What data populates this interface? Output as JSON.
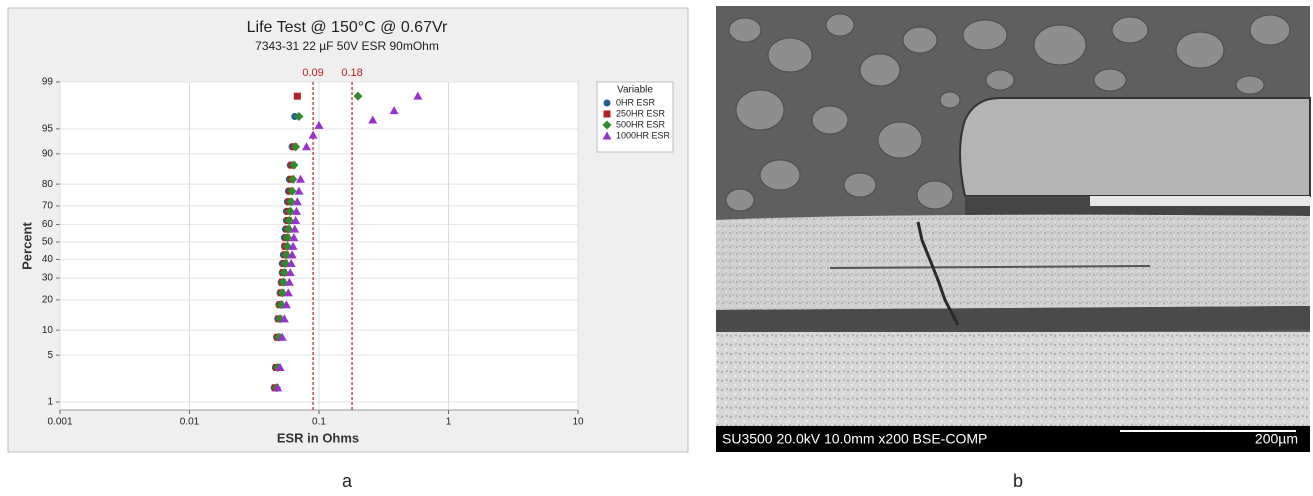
{
  "chart_data": {
    "type": "probability",
    "title": "Life Test @ 150°C @ 0.67Vr",
    "subtitle": "7343-31 22 µF 50V ESR 90mOhm",
    "x_label": "ESR in Ohms",
    "y_label": "Percent",
    "legend_title": "Variable",
    "legend": "right",
    "xlim": [
      0.001,
      10
    ],
    "xticks": [
      0.001,
      0.01,
      0.1,
      1,
      10
    ],
    "log_x": true,
    "ylim": [
      1,
      99
    ],
    "yticks": [
      1,
      5,
      10,
      20,
      30,
      40,
      50,
      60,
      70,
      80,
      90,
      95,
      99
    ],
    "grid": true,
    "reference_lines": [
      {
        "value": 0.09,
        "label": "0.09",
        "color": "#b22222"
      },
      {
        "value": 0.18,
        "label": "0.18",
        "color": "#b22222"
      }
    ],
    "series": [
      {
        "name": "0HR ESR",
        "color": "#1f5c99",
        "marker": "circle",
        "x": [
          0.045,
          0.046,
          0.047,
          0.048,
          0.049,
          0.05,
          0.051,
          0.052,
          0.052,
          0.053,
          0.054,
          0.054,
          0.055,
          0.056,
          0.056,
          0.057,
          0.058,
          0.059,
          0.06,
          0.062,
          0.065
        ],
        "y": [
          1.7,
          3.4,
          8.3,
          13.2,
          18.1,
          23.0,
          27.9,
          32.8,
          37.7,
          42.6,
          47.5,
          52.5,
          57.4,
          62.3,
          67.2,
          72.1,
          77.0,
          81.9,
          86.8,
          91.7,
          96.6
        ]
      },
      {
        "name": "250HR ESR",
        "color": "#b22222",
        "marker": "square",
        "x": [
          0.046,
          0.047,
          0.048,
          0.049,
          0.05,
          0.051,
          0.052,
          0.053,
          0.054,
          0.055,
          0.055,
          0.056,
          0.057,
          0.058,
          0.058,
          0.059,
          0.06,
          0.061,
          0.062,
          0.064,
          0.068
        ],
        "y": [
          1.7,
          3.4,
          8.3,
          13.2,
          18.1,
          23.0,
          27.9,
          32.8,
          37.7,
          42.6,
          47.5,
          52.5,
          57.4,
          62.3,
          67.2,
          72.1,
          77.0,
          81.9,
          86.8,
          91.7,
          98.3
        ]
      },
      {
        "name": "500HR ESR",
        "color": "#2e8b2e",
        "marker": "diamond",
        "x": [
          0.047,
          0.048,
          0.049,
          0.05,
          0.051,
          0.052,
          0.053,
          0.054,
          0.055,
          0.056,
          0.057,
          0.057,
          0.058,
          0.059,
          0.06,
          0.061,
          0.062,
          0.063,
          0.064,
          0.066,
          0.07,
          0.2
        ],
        "y": [
          1.7,
          3.4,
          8.3,
          13.2,
          18.1,
          23.0,
          27.9,
          32.8,
          37.7,
          42.6,
          47.5,
          52.5,
          57.4,
          62.3,
          67.2,
          72.1,
          77.0,
          81.9,
          86.8,
          91.7,
          96.6,
          98.3
        ]
      },
      {
        "name": "1000HR ESR",
        "color": "#9932cc",
        "marker": "triangle",
        "x": [
          0.048,
          0.05,
          0.052,
          0.054,
          0.056,
          0.058,
          0.059,
          0.06,
          0.061,
          0.062,
          0.063,
          0.064,
          0.065,
          0.066,
          0.067,
          0.068,
          0.07,
          0.072,
          0.08,
          0.09,
          0.1,
          0.26,
          0.38,
          0.58
        ],
        "y": [
          1.7,
          3.4,
          8.3,
          13.2,
          18.1,
          23.0,
          27.9,
          32.8,
          37.7,
          42.6,
          47.5,
          52.5,
          57.4,
          62.3,
          67.2,
          72.1,
          77.0,
          81.9,
          91.7,
          94.0,
          95.5,
          96.2,
          97.2,
          98.3
        ]
      }
    ]
  },
  "figure": {
    "panel_labels": [
      "a",
      "b"
    ],
    "sem_info": "SU3500 20.0kV 10.0mm x200 BSE-COMP",
    "sem_scale": "200µm"
  }
}
